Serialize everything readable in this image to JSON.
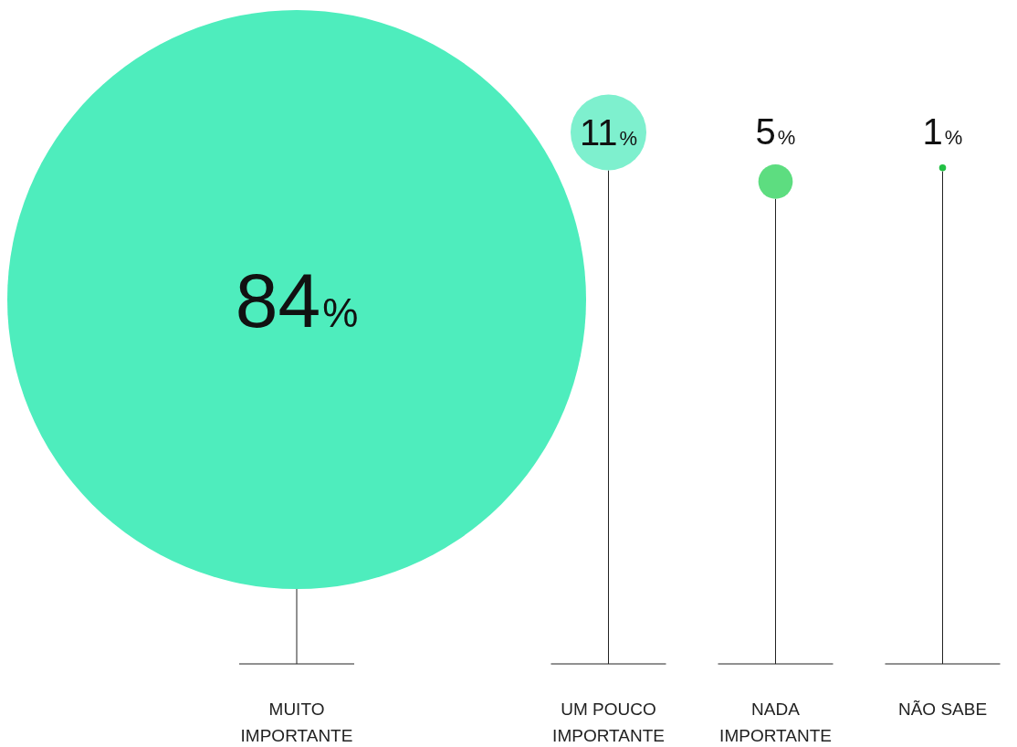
{
  "chart_data": {
    "type": "other",
    "categories": [
      "MUITO IMPORTANTE",
      "UM POUCO IMPORTANTE",
      "NADA IMPORTANTE",
      "NÃO SABE"
    ],
    "values": [
      84,
      11,
      5,
      1
    ],
    "colors": [
      "#4eedbd",
      "#7ef0ce",
      "#5ddd80",
      "#22c044"
    ],
    "value_labels": [
      "84%",
      "11%",
      "5%",
      "1%"
    ]
  }
}
